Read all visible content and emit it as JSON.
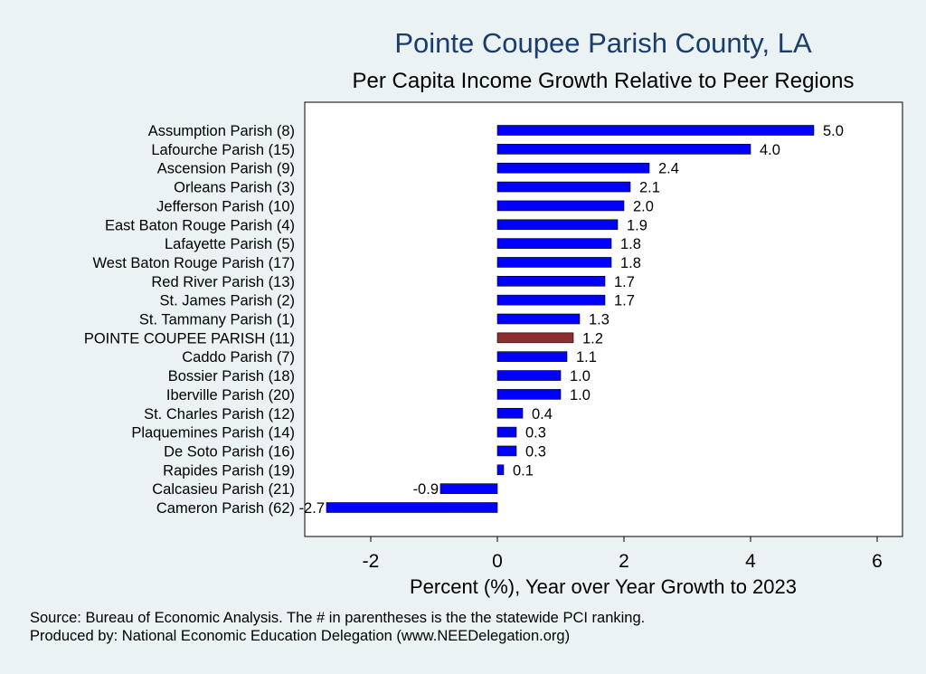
{
  "colors": {
    "background": "#eaf2f3",
    "plot_background": "#ffffff",
    "bar": "#0000ff",
    "highlight_bar": "#8b2e2e",
    "title": "#1a3d6e"
  },
  "chart_data": {
    "type": "bar",
    "orientation": "horizontal",
    "title": "Pointe Coupee Parish County, LA",
    "subtitle": "Per Capita Income Growth Relative to Peer Regions",
    "xlabel": "Percent (%), Year over Year Growth to 2023",
    "ylabel": "",
    "xlim": [
      -3,
      6.4
    ],
    "xticks": [
      -2,
      0,
      2,
      4,
      6
    ],
    "grid": false,
    "highlight_category": "POINTE COUPEE PARISH (11)",
    "categories": [
      "Assumption Parish  (8)",
      "Lafourche Parish (15)",
      "Ascension Parish  (9)",
      "Orleans Parish  (3)",
      "Jefferson Parish (10)",
      "East Baton Rouge Parish  (4)",
      "Lafayette Parish  (5)",
      "West Baton Rouge Parish (17)",
      "Red River Parish (13)",
      "St. James Parish  (2)",
      "St. Tammany Parish  (1)",
      "POINTE COUPEE PARISH (11)",
      "Caddo Parish  (7)",
      "Bossier Parish (18)",
      "Iberville Parish (20)",
      "St. Charles Parish (12)",
      "Plaquemines Parish (14)",
      "De Soto Parish (16)",
      "Rapides Parish (19)",
      "Calcasieu Parish (21)",
      "Cameron Parish  (62)"
    ],
    "values": [
      5.0,
      4.0,
      2.4,
      2.1,
      2.0,
      1.9,
      1.8,
      1.8,
      1.7,
      1.7,
      1.3,
      1.2,
      1.1,
      1.0,
      1.0,
      0.4,
      0.3,
      0.3,
      0.1,
      -0.9,
      -2.7
    ],
    "value_labels": [
      "5.0",
      "4.0",
      "2.4",
      "2.1",
      "2.0",
      "1.9",
      "1.8",
      "1.8",
      "1.7",
      "1.7",
      "1.3",
      "1.2",
      "1.1",
      "1.0",
      "1.0",
      "0.4",
      "0.3",
      "0.3",
      "0.1",
      "-0.9",
      "-2.7"
    ]
  },
  "footnotes": [
    "Source: Bureau of Economic Analysis. The # in parentheses is the the statewide PCI ranking.",
    "Produced by: National Economic Education Delegation (www.NEEDelegation.org)"
  ]
}
